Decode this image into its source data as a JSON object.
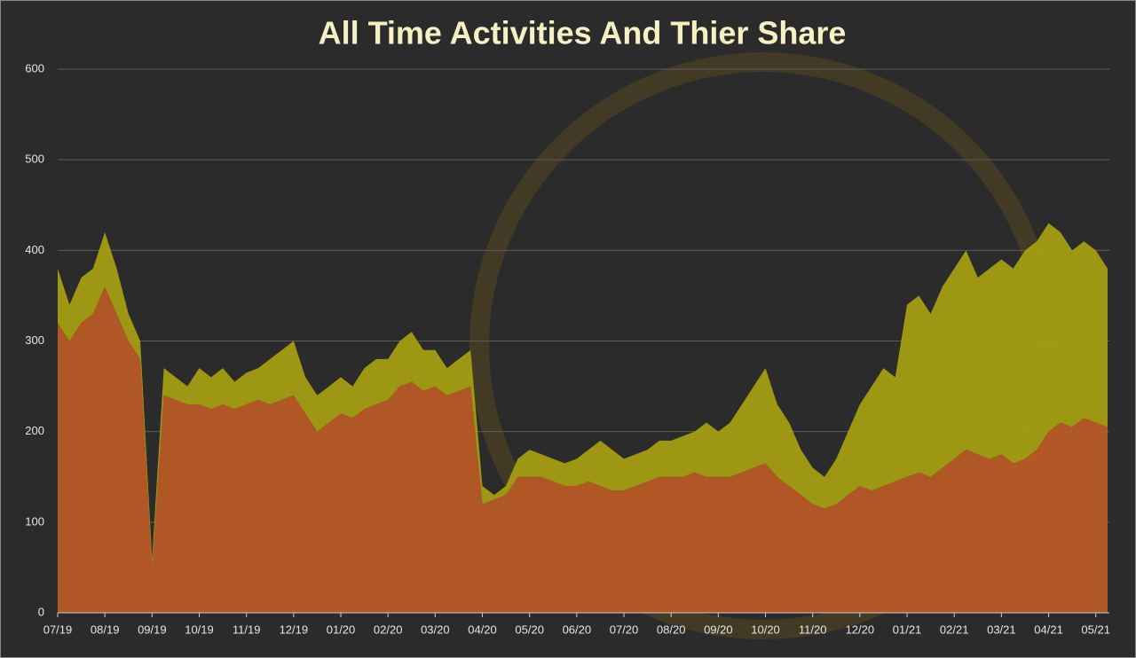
{
  "chart_data": {
    "type": "stacked_area",
    "title": "All Time Activities And Thier Share",
    "categories": [
      "07/19",
      null,
      null,
      null,
      "08/19",
      null,
      null,
      null,
      "09/19",
      null,
      null,
      null,
      "10/19",
      null,
      null,
      null,
      "11/19",
      null,
      null,
      null,
      "12/19",
      null,
      null,
      null,
      "01/20",
      null,
      null,
      null,
      "02/20",
      null,
      null,
      null,
      "03/20",
      null,
      null,
      null,
      "04/20",
      null,
      null,
      null,
      "05/20",
      null,
      null,
      null,
      "06/20",
      null,
      null,
      null,
      "07/20",
      null,
      null,
      null,
      "08/20",
      null,
      null,
      null,
      "09/20",
      null,
      null,
      null,
      "10/20",
      null,
      null,
      null,
      "11/20",
      null,
      null,
      null,
      "12/20",
      null,
      null,
      null,
      "01/21",
      null,
      null,
      null,
      "02/21",
      null,
      null,
      null,
      "03/21",
      null,
      null,
      null,
      "04/21",
      null,
      null,
      null,
      "05/21",
      null
    ],
    "series": [
      {
        "color": "#b85a26",
        "values": [
          320,
          300,
          320,
          330,
          360,
          330,
          300,
          280,
          50,
          240,
          235,
          230,
          230,
          225,
          230,
          225,
          230,
          235,
          230,
          235,
          240,
          220,
          200,
          210,
          220,
          215,
          225,
          230,
          235,
          250,
          255,
          245,
          250,
          240,
          245,
          250,
          120,
          125,
          130,
          150,
          150,
          150,
          145,
          140,
          140,
          145,
          140,
          135,
          135,
          140,
          145,
          150,
          150,
          150,
          155,
          150,
          150,
          150,
          155,
          160,
          165,
          150,
          140,
          130,
          120,
          115,
          120,
          130,
          140,
          135,
          140,
          145,
          150,
          155,
          150,
          160,
          170,
          180,
          175,
          170,
          175,
          165,
          170,
          180,
          200,
          210,
          205,
          215,
          210,
          205
        ]
      },
      {
        "color": "#a39d12",
        "values": [
          60,
          40,
          50,
          50,
          60,
          50,
          30,
          20,
          10,
          30,
          25,
          20,
          40,
          35,
          40,
          30,
          35,
          35,
          50,
          55,
          60,
          40,
          40,
          40,
          40,
          35,
          45,
          50,
          45,
          50,
          55,
          45,
          40,
          30,
          35,
          40,
          20,
          5,
          10,
          20,
          30,
          25,
          25,
          25,
          30,
          35,
          50,
          45,
          35,
          35,
          35,
          40,
          40,
          45,
          45,
          60,
          50,
          60,
          75,
          90,
          105,
          80,
          70,
          50,
          40,
          35,
          50,
          70,
          90,
          115,
          130,
          115,
          190,
          195,
          180,
          200,
          210,
          220,
          195,
          210,
          215,
          215,
          230,
          230,
          230,
          210,
          195,
          195,
          190,
          175
        ]
      }
    ],
    "ylim": [
      0,
      600
    ],
    "yticks": [
      0,
      100,
      200,
      300,
      400,
      500,
      600
    ],
    "grid": true
  }
}
